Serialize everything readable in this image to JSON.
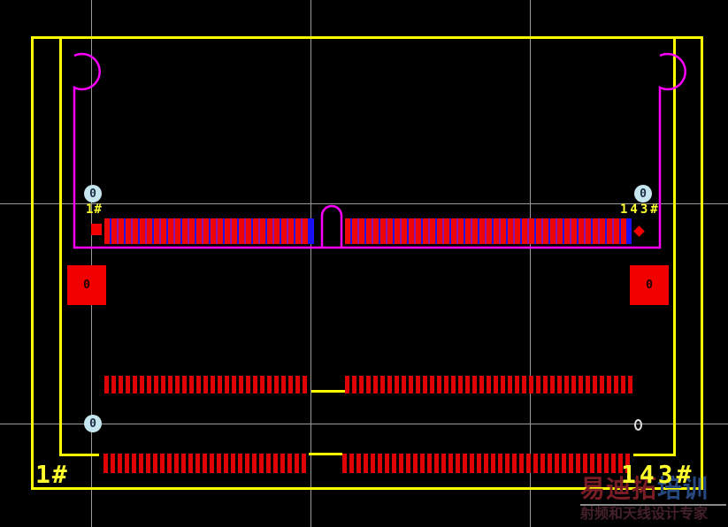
{
  "colors": {
    "background": "#000000",
    "grid": "#9a9a9a",
    "board_outline_yellow": "#ffff00",
    "connector_outline_magenta": "#ff00ff",
    "pad_red": "#ee0505",
    "pad_gap_blue": "#2612e2",
    "pad_gap_purple": "#8c14ac",
    "end_cap_blue": "#1a10f0",
    "bar_red": "#df0202",
    "mount_pad_red": "#f20000",
    "marker_fill_cyan": "#c5e6ee",
    "marker_text": "#1c2b46",
    "label_yellow": "#ffff2e",
    "watermark_red": "#7b1d24",
    "watermark_blue": "#27477f",
    "watermark_tagline": "#44202a"
  },
  "labels": {
    "pin_first_top": "1#",
    "pin_last_top": "143#",
    "pin_first_bottom": "1#",
    "pin_last_bottom": "143#",
    "zero": "0"
  },
  "pads": {
    "top_left": {
      "count": 29,
      "pad_w": 6,
      "gap_w": 2,
      "pad_color": "#ee0505",
      "gap_colors": [
        "#2612e2",
        "#8c14ac"
      ]
    },
    "top_right": {
      "count": 40,
      "pad_w": 6,
      "gap_w": 2,
      "pad_color": "#ee0505",
      "gap_colors": [
        "#2612e2",
        "#8c14ac"
      ]
    },
    "mid_left": {
      "count": 29,
      "pad_w": 5,
      "gap_w": 3,
      "pad_color": "#df0202",
      "gap_colors": [
        "transparent"
      ]
    },
    "mid_right": {
      "count": 41,
      "pad_w": 5,
      "gap_w": 3,
      "pad_color": "#df0202",
      "gap_colors": [
        "transparent"
      ]
    },
    "bot_left": {
      "count": 29,
      "pad_w": 5,
      "gap_w": 3,
      "pad_color": "#df0202",
      "gap_colors": [
        "transparent"
      ]
    },
    "bot_right": {
      "count": 41,
      "pad_w": 5,
      "gap_w": 3,
      "pad_color": "#df0202",
      "gap_colors": [
        "transparent"
      ]
    }
  },
  "watermark": {
    "brand_red": "易迪拓",
    "brand_blue": "培训",
    "tagline": "射频和天线设计专家"
  }
}
